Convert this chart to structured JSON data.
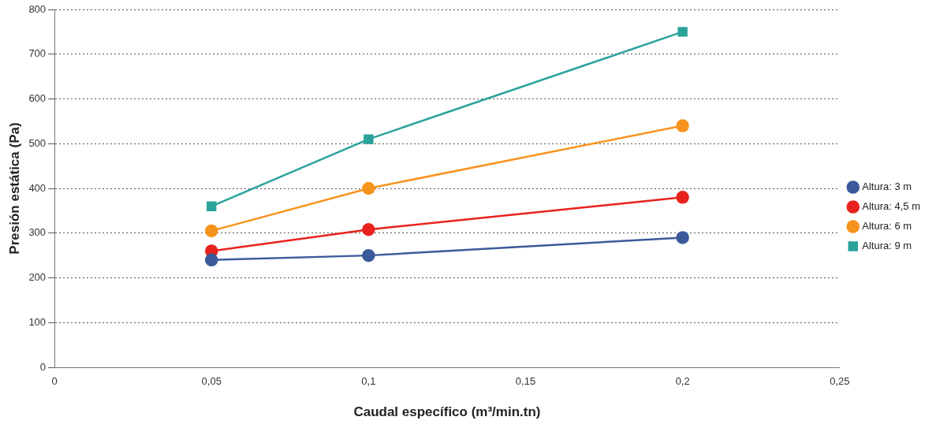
{
  "chart_data": {
    "type": "line",
    "xlabel": "Caudal específico (m³/min.tn)",
    "ylabel": "Presión estática (Pa)",
    "x": [
      0.05,
      0.1,
      0.2
    ],
    "series": [
      {
        "name": "Altura: 3 m",
        "color": "#3a5a9a",
        "values": [
          240,
          250,
          290
        ]
      },
      {
        "name": "Altura: 4,5 m",
        "color": "#e8221e",
        "values": [
          260,
          308,
          380
        ]
      },
      {
        "name": "Altura: 6 m",
        "color": "#f7941d",
        "values": [
          305,
          400,
          540
        ]
      },
      {
        "name": "Altura: 9 m",
        "color": "#2aa39a",
        "values": [
          360,
          510,
          750
        ],
        "marker": "square"
      }
    ],
    "xlim": [
      0,
      0.25
    ],
    "xticks": [
      0,
      {
        "value": 0.05,
        "label": "0,05"
      },
      {
        "value": 0.1,
        "label": "0,1"
      },
      {
        "value": 0.15,
        "label": "0,15"
      },
      {
        "value": 0.2,
        "label": "0,2"
      },
      {
        "value": 0.25,
        "label": "0,25"
      }
    ],
    "ylim": [
      0,
      800
    ],
    "yticks": [
      0,
      100,
      200,
      300,
      400,
      500,
      600,
      700,
      800
    ],
    "grid": "y",
    "legend": "right",
    "marker": "circle",
    "line_style": "solid"
  }
}
